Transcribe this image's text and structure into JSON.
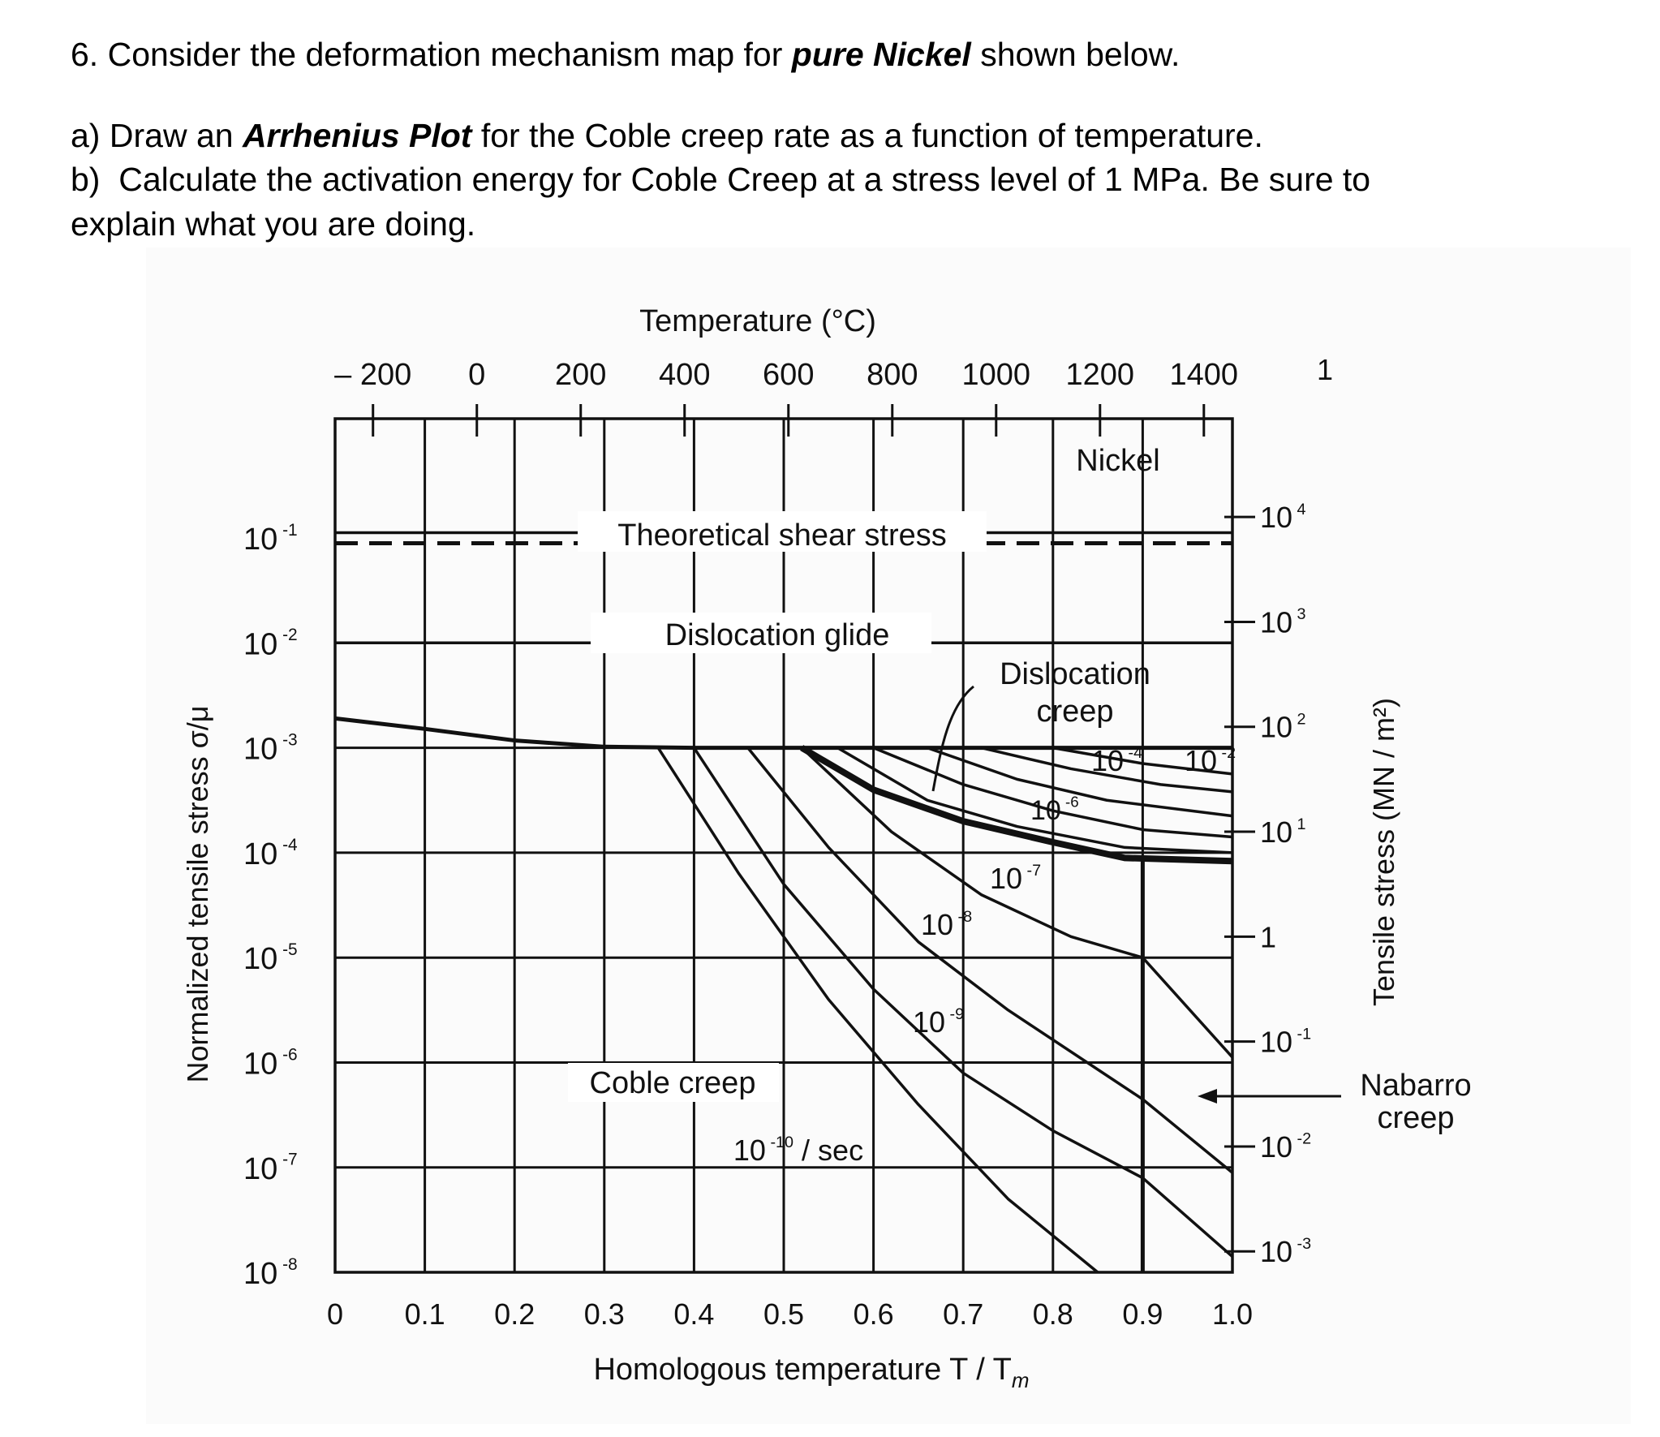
{
  "question": {
    "number": "6.",
    "intro_pre": "Consider the deformation mechanism map for ",
    "intro_bold": "pure Nickel",
    "intro_post": " shown below.",
    "part_a": {
      "label": "a)",
      "pre": "Draw an ",
      "bold": "Arrhenius Plot",
      "post": " for the Coble creep rate as a function of temperature."
    },
    "part_b": {
      "label": "b)",
      "line1": "Calculate the activation energy for Coble Creep at a stress level of 1 MPa.  Be sure to",
      "line2": "explain what you are doing."
    }
  },
  "chart_data": {
    "type": "line",
    "title": "Nickel",
    "xlabel": "Homologous temperature T / T",
    "xlabel_sub": "m",
    "ylabel": "Normalized tensile stress σ/μ",
    "top_axis_label": "Temperature (°C)",
    "right_axis_label": "Tensile stress (MN / m²)",
    "xlim": [
      0,
      1.0
    ],
    "ylim_log10": [
      -8,
      0.14
    ],
    "y_scale": "log",
    "grid": true,
    "x_ticks": [
      "0",
      "0.1",
      "0.2",
      "0.3",
      "0.4",
      "0.5",
      "0.6",
      "0.7",
      "0.8",
      "0.9",
      "1.0"
    ],
    "y_ticks": [
      {
        "base": "10",
        "exp": "-1"
      },
      {
        "base": "10",
        "exp": "-2"
      },
      {
        "base": "10",
        "exp": "-3"
      },
      {
        "base": "10",
        "exp": "-4"
      },
      {
        "base": "10",
        "exp": "-5"
      },
      {
        "base": "10",
        "exp": "-6"
      },
      {
        "base": "10",
        "exp": "-7"
      },
      {
        "base": "10",
        "exp": "-8"
      }
    ],
    "top_ticks_celsius": [
      -200,
      0,
      200,
      400,
      600,
      800,
      1000,
      1200,
      1400
    ],
    "top_tick_labels": [
      "– 200",
      "0",
      "200",
      "400",
      "600",
      "800",
      "1000",
      "1200",
      "1400"
    ],
    "top_extra_label": "1",
    "right_ticks": [
      {
        "base": "10",
        "exp": "4",
        "log_mpa": 4
      },
      {
        "base": "10",
        "exp": "3",
        "log_mpa": 3
      },
      {
        "base": "10",
        "exp": "2",
        "log_mpa": 2
      },
      {
        "base": "10",
        "exp": "1",
        "log_mpa": 1
      },
      {
        "base": "1",
        "exp": "",
        "log_mpa": 0
      },
      {
        "base": "10",
        "exp": "-1",
        "log_mpa": -1
      },
      {
        "base": "10",
        "exp": "-2",
        "log_mpa": -2
      },
      {
        "base": "10",
        "exp": "-3",
        "log_mpa": -3
      }
    ],
    "regions": {
      "theoretical": "Theoretical shear stress",
      "glide": "Dislocation glide",
      "disl_creep_1": "Dislocation",
      "disl_creep_2": "creep",
      "coble": "Coble creep",
      "nabarro_1": "Nabarro",
      "nabarro_2": "creep"
    },
    "contour_labels": [
      {
        "base": "10",
        "exp": "-10",
        "suffix": " / sec"
      },
      {
        "base": "10",
        "exp": "-9",
        "suffix": ""
      },
      {
        "base": "10",
        "exp": "-8",
        "suffix": ""
      },
      {
        "base": "10",
        "exp": "-7",
        "suffix": ""
      },
      {
        "base": "10",
        "exp": "-6",
        "suffix": ""
      },
      {
        "base": "10",
        "exp": "-4",
        "suffix": ""
      },
      {
        "base": "10",
        "exp": "-2",
        "suffix": ""
      }
    ],
    "boundaries": {
      "theoretical_solid": [
        [
          0,
          -0.95
        ],
        [
          1.0,
          -0.95
        ]
      ],
      "theoretical_dashed": [
        [
          0,
          -1.05
        ],
        [
          1.0,
          -1.05
        ]
      ],
      "glide_line": [
        [
          0,
          -2.0
        ],
        [
          1.0,
          -2.0
        ]
      ],
      "glide_creep": [
        [
          0,
          -2.72
        ],
        [
          0.1,
          -2.82
        ],
        [
          0.2,
          -2.93
        ],
        [
          0.3,
          -2.99
        ],
        [
          0.4,
          -3.0
        ],
        [
          1.0,
          -3.0
        ]
      ],
      "coble_nabarro": [
        [
          0.9,
          -4.05
        ],
        [
          0.9,
          -8
        ]
      ],
      "creep_diffusion": [
        [
          0.52,
          -3.0
        ],
        [
          0.6,
          -3.4
        ],
        [
          0.7,
          -3.7
        ],
        [
          0.8,
          -3.9
        ],
        [
          0.88,
          -4.05
        ],
        [
          1.0,
          -4.08
        ]
      ]
    },
    "contours": [
      {
        "rate_log10": -10,
        "points": [
          [
            0.36,
            -3
          ],
          [
            0.45,
            -4.2
          ],
          [
            0.55,
            -5.4
          ],
          [
            0.65,
            -6.4
          ],
          [
            0.75,
            -7.3
          ],
          [
            0.85,
            -8
          ]
        ]
      },
      {
        "rate_log10": -9,
        "points": [
          [
            0.4,
            -3
          ],
          [
            0.5,
            -4.3
          ],
          [
            0.6,
            -5.3
          ],
          [
            0.7,
            -6.1
          ],
          [
            0.8,
            -6.65
          ],
          [
            0.9,
            -7.1
          ],
          [
            1.0,
            -7.85
          ]
        ]
      },
      {
        "rate_log10": -8,
        "points": [
          [
            0.46,
            -3
          ],
          [
            0.55,
            -3.95
          ],
          [
            0.65,
            -4.85
          ],
          [
            0.75,
            -5.5
          ],
          [
            0.9,
            -6.35
          ],
          [
            1.0,
            -7.05
          ]
        ]
      },
      {
        "rate_log10": -7,
        "points": [
          [
            0.52,
            -3
          ],
          [
            0.62,
            -3.8
          ],
          [
            0.72,
            -4.4
          ],
          [
            0.82,
            -4.8
          ],
          [
            0.9,
            -5.0
          ],
          [
            1.0,
            -5.95
          ]
        ]
      },
      {
        "rate_log10": -6,
        "points": [
          [
            0.56,
            -3
          ],
          [
            0.66,
            -3.5
          ],
          [
            0.76,
            -3.75
          ],
          [
            0.88,
            -3.95
          ],
          [
            1.0,
            -4.0
          ]
        ]
      },
      {
        "rate_log10": -5,
        "points": [
          [
            0.6,
            -3
          ],
          [
            0.7,
            -3.35
          ],
          [
            0.8,
            -3.6
          ],
          [
            0.9,
            -3.78
          ],
          [
            1.0,
            -3.85
          ]
        ]
      },
      {
        "rate_log10": -4,
        "points": [
          [
            0.66,
            -3
          ],
          [
            0.76,
            -3.3
          ],
          [
            0.86,
            -3.5
          ],
          [
            1.0,
            -3.65
          ]
        ]
      },
      {
        "rate_log10": -3,
        "points": [
          [
            0.72,
            -3
          ],
          [
            0.82,
            -3.2
          ],
          [
            0.92,
            -3.35
          ],
          [
            1.0,
            -3.42
          ]
        ]
      },
      {
        "rate_log10": -2,
        "points": [
          [
            0.8,
            -3
          ],
          [
            0.9,
            -3.15
          ],
          [
            1.0,
            -3.25
          ]
        ]
      }
    ]
  }
}
